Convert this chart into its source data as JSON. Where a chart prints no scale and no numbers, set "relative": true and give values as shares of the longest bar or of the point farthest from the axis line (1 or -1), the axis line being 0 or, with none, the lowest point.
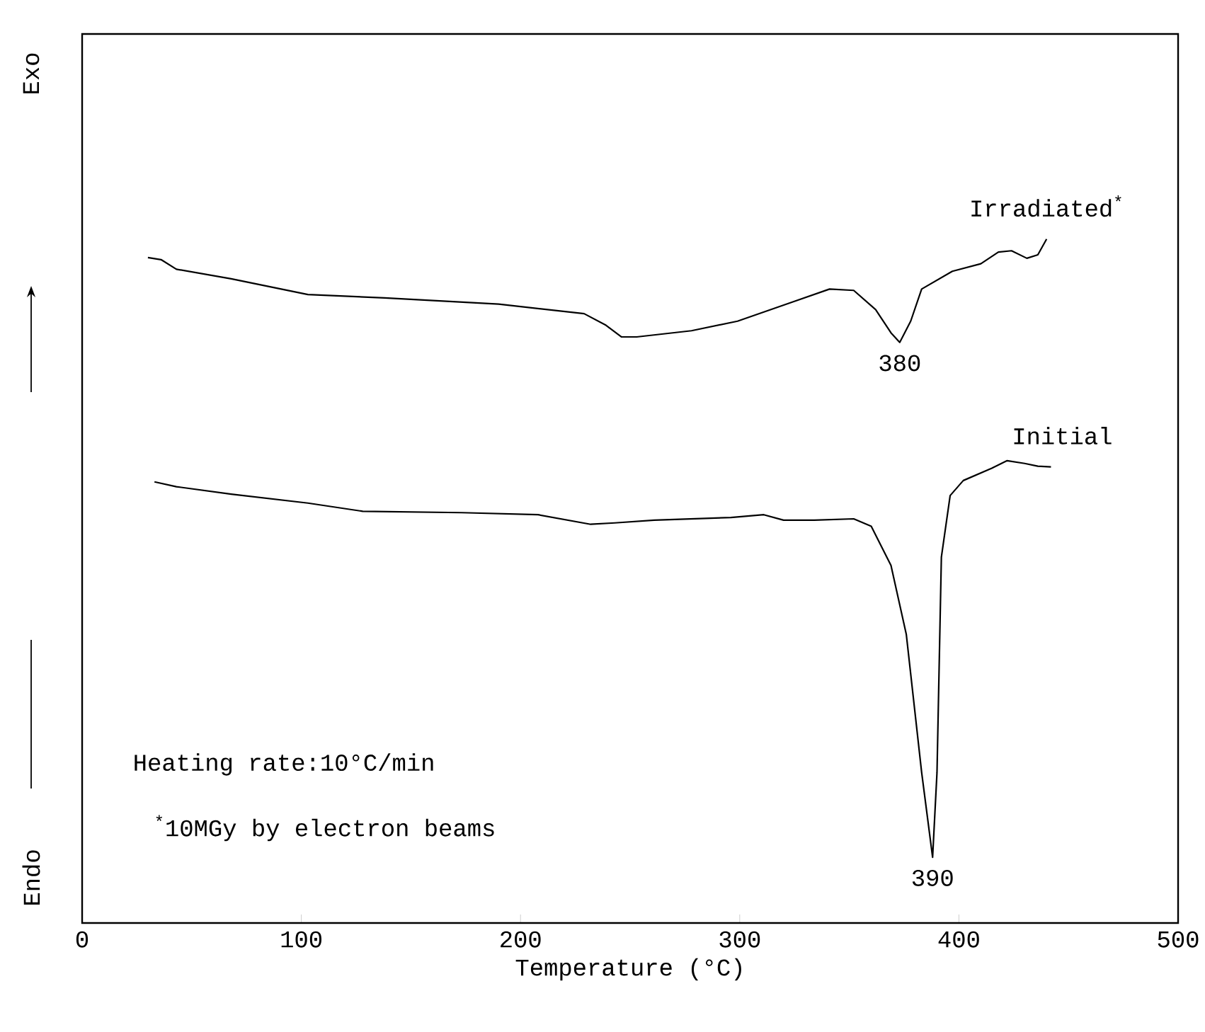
{
  "chart_data": {
    "type": "line",
    "xlabel": "Temperature  (°C)",
    "relative": true,
    "xlim": [
      0,
      500
    ],
    "xticks": [
      0,
      100,
      200,
      300,
      400,
      500
    ],
    "tick_labels": "x",
    "series": [
      {
        "name": "Irradiated$^{*}$",
        "color": "#000000",
        "x": [
          30,
          36,
          43,
          68,
          103,
          138,
          190,
          229,
          239,
          246,
          253,
          278,
          299,
          324,
          341,
          352,
          362,
          369,
          373,
          378,
          383,
          397,
          410,
          418,
          424,
          431,
          436,
          440
        ],
        "values": [
          0.973,
          0.97,
          0.956,
          0.942,
          0.919,
          0.914,
          0.905,
          0.891,
          0.874,
          0.857,
          0.857,
          0.866,
          0.88,
          0.908,
          0.927,
          0.925,
          0.897,
          0.863,
          0.849,
          0.88,
          0.927,
          0.953,
          0.964,
          0.981,
          0.983,
          0.972,
          0.977,
          1.0
        ]
      },
      {
        "name": "Initial",
        "color": "#000000",
        "x": [
          33,
          43,
          68,
          103,
          128,
          173,
          208,
          232,
          243,
          261,
          296,
          311,
          320,
          334,
          352,
          360,
          369,
          376,
          383,
          388,
          390,
          392,
          396,
          402,
          415,
          422,
          430,
          436,
          442
        ],
        "values": [
          0.645,
          0.638,
          0.627,
          0.614,
          0.602,
          0.6,
          0.597,
          0.583,
          0.585,
          0.589,
          0.593,
          0.597,
          0.589,
          0.589,
          0.591,
          0.58,
          0.523,
          0.422,
          0.22,
          0.096,
          0.22,
          0.535,
          0.625,
          0.647,
          0.665,
          0.676,
          0.672,
          0.668,
          0.667
        ]
      }
    ],
    "annotations": [
      {
        "text": "380",
        "x": 373,
        "y": 0.849
      },
      {
        "text": "390",
        "x": 388,
        "y": 0.096
      },
      "Heating rate:10°C/min",
      "$^{*}$10MGy by electron beams",
      "Exo",
      "Endo"
    ]
  }
}
